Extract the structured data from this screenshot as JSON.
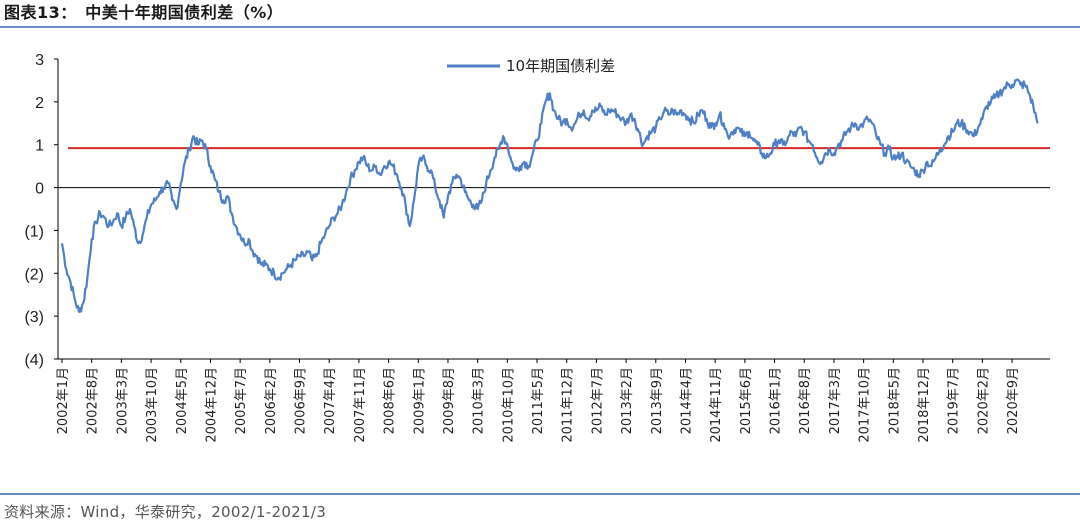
{
  "header": {
    "title": "图表13：　中美十年期国债利差（%）"
  },
  "footer": {
    "source": "资料来源：Wind，华泰研究，2002/1-2021/3"
  },
  "colors": {
    "series": "#4f7fc5",
    "reference_line": "#d62728",
    "rule": "#6b8fc2"
  },
  "chart_data": {
    "type": "line",
    "title": "中美十年期国债利差（%）",
    "ylim": [
      -4,
      3
    ],
    "yticks": [
      3,
      2,
      1,
      0,
      -1,
      -2,
      -3,
      -4
    ],
    "ytick_labels": [
      "3",
      "2",
      "1",
      "0",
      "(1)",
      "(2)",
      "(3)",
      "(4)"
    ],
    "xtick_labels": [
      "2002年1月",
      "2002年8月",
      "2003年3月",
      "2003年10月",
      "2004年5月",
      "2004年12月",
      "2005年7月",
      "2006年2月",
      "2006年9月",
      "2007年4月",
      "2007年11月",
      "2008年6月",
      "2009年1月",
      "2009年8月",
      "2010年3月",
      "2010年10月",
      "2011年5月",
      "2011年12月",
      "2012年7月",
      "2013年2月",
      "2013年9月",
      "2014年4月",
      "2014年11月",
      "2015年6月",
      "2016年1月",
      "2016年8月",
      "2017年3月",
      "2017年10月",
      "2018年5月",
      "2018年12月",
      "2019年7月",
      "2020年2月",
      "2020年9月"
    ],
    "legend": {
      "position": "top",
      "entries": [
        "10年期国债利差"
      ]
    },
    "reference_line": {
      "y": 0.92
    },
    "series": [
      {
        "name": "10年期国债利差",
        "points": [
          [
            "2002-01",
            -1.3
          ],
          [
            "2002-02",
            -1.9
          ],
          [
            "2002-03",
            -2.2
          ],
          [
            "2002-04",
            -2.6
          ],
          [
            "2002-05",
            -2.9
          ],
          [
            "2002-06",
            -2.7
          ],
          [
            "2002-07",
            -2.1
          ],
          [
            "2002-08",
            -1.2
          ],
          [
            "2002-09",
            -0.8
          ],
          [
            "2002-10",
            -0.6
          ],
          [
            "2002-11",
            -0.7
          ],
          [
            "2002-12",
            -0.9
          ],
          [
            "2003-01",
            -0.8
          ],
          [
            "2003-02",
            -0.6
          ],
          [
            "2003-03",
            -0.9
          ],
          [
            "2003-04",
            -0.7
          ],
          [
            "2003-05",
            -0.5
          ],
          [
            "2003-06",
            -0.9
          ],
          [
            "2003-07",
            -1.3
          ],
          [
            "2003-08",
            -1.1
          ],
          [
            "2003-09",
            -0.7
          ],
          [
            "2003-10",
            -0.4
          ],
          [
            "2003-11",
            -0.3
          ],
          [
            "2003-12",
            -0.1
          ],
          [
            "2004-01",
            0.0
          ],
          [
            "2004-02",
            0.1
          ],
          [
            "2004-03",
            -0.3
          ],
          [
            "2004-04",
            -0.5
          ],
          [
            "2004-05",
            0.1
          ],
          [
            "2004-06",
            0.6
          ],
          [
            "2004-07",
            0.9
          ],
          [
            "2004-08",
            1.2
          ],
          [
            "2004-09",
            1.0
          ],
          [
            "2004-10",
            1.1
          ],
          [
            "2004-11",
            0.9
          ],
          [
            "2004-12",
            0.5
          ],
          [
            "2005-01",
            0.2
          ],
          [
            "2005-02",
            -0.1
          ],
          [
            "2005-03",
            -0.3
          ],
          [
            "2005-04",
            -0.2
          ],
          [
            "2005-05",
            -0.6
          ],
          [
            "2005-06",
            -0.9
          ],
          [
            "2005-07",
            -1.1
          ],
          [
            "2005-08",
            -1.3
          ],
          [
            "2005-09",
            -1.2
          ],
          [
            "2005-10",
            -1.5
          ],
          [
            "2005-11",
            -1.6
          ],
          [
            "2005-12",
            -1.8
          ],
          [
            "2006-01",
            -1.8
          ],
          [
            "2006-02",
            -1.9
          ],
          [
            "2006-03",
            -2.0
          ],
          [
            "2006-04",
            -2.1
          ],
          [
            "2006-05",
            -2.0
          ],
          [
            "2006-06",
            -1.9
          ],
          [
            "2006-07",
            -1.8
          ],
          [
            "2006-08",
            -1.7
          ],
          [
            "2006-09",
            -1.6
          ],
          [
            "2006-10",
            -1.6
          ],
          [
            "2006-11",
            -1.5
          ],
          [
            "2006-12",
            -1.7
          ],
          [
            "2007-01",
            -1.6
          ],
          [
            "2007-02",
            -1.3
          ],
          [
            "2007-03",
            -1.1
          ],
          [
            "2007-04",
            -0.9
          ],
          [
            "2007-05",
            -0.7
          ],
          [
            "2007-06",
            -0.6
          ],
          [
            "2007-07",
            -0.4
          ],
          [
            "2007-08",
            -0.1
          ],
          [
            "2007-09",
            0.2
          ],
          [
            "2007-10",
            0.4
          ],
          [
            "2007-11",
            0.6
          ],
          [
            "2007-12",
            0.7
          ],
          [
            "2008-01",
            0.5
          ],
          [
            "2008-02",
            0.4
          ],
          [
            "2008-03",
            0.5
          ],
          [
            "2008-04",
            0.3
          ],
          [
            "2008-05",
            0.5
          ],
          [
            "2008-06",
            0.6
          ],
          [
            "2008-07",
            0.5
          ],
          [
            "2008-08",
            0.3
          ],
          [
            "2008-09",
            0.0
          ],
          [
            "2008-10",
            -0.4
          ],
          [
            "2008-11",
            -0.9
          ],
          [
            "2008-12",
            -0.3
          ],
          [
            "2009-01",
            0.5
          ],
          [
            "2009-02",
            0.7
          ],
          [
            "2009-03",
            0.5
          ],
          [
            "2009-04",
            0.4
          ],
          [
            "2009-05",
            0.0
          ],
          [
            "2009-06",
            -0.3
          ],
          [
            "2009-07",
            -0.7
          ],
          [
            "2009-08",
            -0.2
          ],
          [
            "2009-09",
            0.1
          ],
          [
            "2009-10",
            0.3
          ],
          [
            "2009-11",
            0.2
          ],
          [
            "2009-12",
            -0.1
          ],
          [
            "2010-01",
            -0.3
          ],
          [
            "2010-02",
            -0.4
          ],
          [
            "2010-03",
            -0.5
          ],
          [
            "2010-04",
            -0.3
          ],
          [
            "2010-05",
            0.1
          ],
          [
            "2010-06",
            0.4
          ],
          [
            "2010-07",
            0.7
          ],
          [
            "2010-08",
            0.9
          ],
          [
            "2010-09",
            1.2
          ],
          [
            "2010-10",
            1.0
          ],
          [
            "2010-11",
            0.6
          ],
          [
            "2010-12",
            0.4
          ],
          [
            "2011-01",
            0.5
          ],
          [
            "2011-02",
            0.6
          ],
          [
            "2011-03",
            0.5
          ],
          [
            "2011-04",
            0.8
          ],
          [
            "2011-05",
            1.1
          ],
          [
            "2011-06",
            1.5
          ],
          [
            "2011-07",
            2.0
          ],
          [
            "2011-08",
            2.2
          ],
          [
            "2011-09",
            1.8
          ],
          [
            "2011-10",
            1.6
          ],
          [
            "2011-11",
            1.5
          ],
          [
            "2011-12",
            1.6
          ],
          [
            "2012-01",
            1.4
          ],
          [
            "2012-02",
            1.5
          ],
          [
            "2012-03",
            1.7
          ],
          [
            "2012-04",
            1.8
          ],
          [
            "2012-05",
            1.6
          ],
          [
            "2012-06",
            1.8
          ],
          [
            "2012-07",
            1.8
          ],
          [
            "2012-08",
            1.9
          ],
          [
            "2012-09",
            1.7
          ],
          [
            "2012-10",
            1.8
          ],
          [
            "2012-11",
            1.8
          ],
          [
            "2012-12",
            1.7
          ],
          [
            "2013-01",
            1.6
          ],
          [
            "2013-02",
            1.5
          ],
          [
            "2013-03",
            1.7
          ],
          [
            "2013-04",
            1.6
          ],
          [
            "2013-05",
            1.3
          ],
          [
            "2013-06",
            1.0
          ],
          [
            "2013-07",
            1.2
          ],
          [
            "2013-08",
            1.3
          ],
          [
            "2013-09",
            1.4
          ],
          [
            "2013-10",
            1.6
          ],
          [
            "2013-11",
            1.8
          ],
          [
            "2013-12",
            1.7
          ],
          [
            "2014-01",
            1.8
          ],
          [
            "2014-02",
            1.7
          ],
          [
            "2014-03",
            1.8
          ],
          [
            "2014-04",
            1.7
          ],
          [
            "2014-05",
            1.6
          ],
          [
            "2014-06",
            1.5
          ],
          [
            "2014-07",
            1.7
          ],
          [
            "2014-08",
            1.8
          ],
          [
            "2014-09",
            1.6
          ],
          [
            "2014-10",
            1.4
          ],
          [
            "2014-11",
            1.5
          ],
          [
            "2014-12",
            1.7
          ],
          [
            "2015-01",
            1.5
          ],
          [
            "2015-02",
            1.2
          ],
          [
            "2015-03",
            1.3
          ],
          [
            "2015-04",
            1.4
          ],
          [
            "2015-05",
            1.3
          ],
          [
            "2015-06",
            1.2
          ],
          [
            "2015-07",
            1.3
          ],
          [
            "2015-08",
            1.1
          ],
          [
            "2015-09",
            1.0
          ],
          [
            "2015-10",
            0.8
          ],
          [
            "2015-11",
            0.7
          ],
          [
            "2015-12",
            0.8
          ],
          [
            "2016-01",
            1.0
          ],
          [
            "2016-02",
            1.1
          ],
          [
            "2016-03",
            1.0
          ],
          [
            "2016-04",
            1.1
          ],
          [
            "2016-05",
            1.3
          ],
          [
            "2016-06",
            1.2
          ],
          [
            "2016-07",
            1.4
          ],
          [
            "2016-08",
            1.3
          ],
          [
            "2016-09",
            1.1
          ],
          [
            "2016-10",
            1.0
          ],
          [
            "2016-11",
            0.7
          ],
          [
            "2016-12",
            0.6
          ],
          [
            "2017-01",
            0.8
          ],
          [
            "2017-02",
            0.9
          ],
          [
            "2017-03",
            0.8
          ],
          [
            "2017-04",
            1.0
          ],
          [
            "2017-05",
            1.1
          ],
          [
            "2017-06",
            1.3
          ],
          [
            "2017-07",
            1.4
          ],
          [
            "2017-08",
            1.5
          ],
          [
            "2017-09",
            1.4
          ],
          [
            "2017-10",
            1.5
          ],
          [
            "2017-11",
            1.6
          ],
          [
            "2017-12",
            1.5
          ],
          [
            "2018-01",
            1.2
          ],
          [
            "2018-02",
            1.0
          ],
          [
            "2018-03",
            0.8
          ],
          [
            "2018-04",
            0.9
          ],
          [
            "2018-05",
            0.7
          ],
          [
            "2018-06",
            0.7
          ],
          [
            "2018-07",
            0.8
          ],
          [
            "2018-08",
            0.6
          ],
          [
            "2018-09",
            0.5
          ],
          [
            "2018-10",
            0.4
          ],
          [
            "2018-11",
            0.3
          ],
          [
            "2018-12",
            0.4
          ],
          [
            "2019-01",
            0.6
          ],
          [
            "2019-02",
            0.5
          ],
          [
            "2019-03",
            0.7
          ],
          [
            "2019-04",
            0.9
          ],
          [
            "2019-05",
            1.0
          ],
          [
            "2019-06",
            1.2
          ],
          [
            "2019-07",
            1.3
          ],
          [
            "2019-08",
            1.5
          ],
          [
            "2019-09",
            1.5
          ],
          [
            "2019-10",
            1.4
          ],
          [
            "2019-11",
            1.3
          ],
          [
            "2019-12",
            1.2
          ],
          [
            "2020-01",
            1.4
          ],
          [
            "2020-02",
            1.6
          ],
          [
            "2020-03",
            1.9
          ],
          [
            "2020-04",
            2.0
          ],
          [
            "2020-05",
            2.1
          ],
          [
            "2020-06",
            2.2
          ],
          [
            "2020-07",
            2.3
          ],
          [
            "2020-08",
            2.4
          ],
          [
            "2020-09",
            2.4
          ],
          [
            "2020-10",
            2.5
          ],
          [
            "2020-11",
            2.4
          ],
          [
            "2020-12",
            2.4
          ],
          [
            "2021-01",
            2.2
          ],
          [
            "2021-02",
            1.9
          ],
          [
            "2021-03",
            1.5
          ]
        ]
      }
    ]
  }
}
